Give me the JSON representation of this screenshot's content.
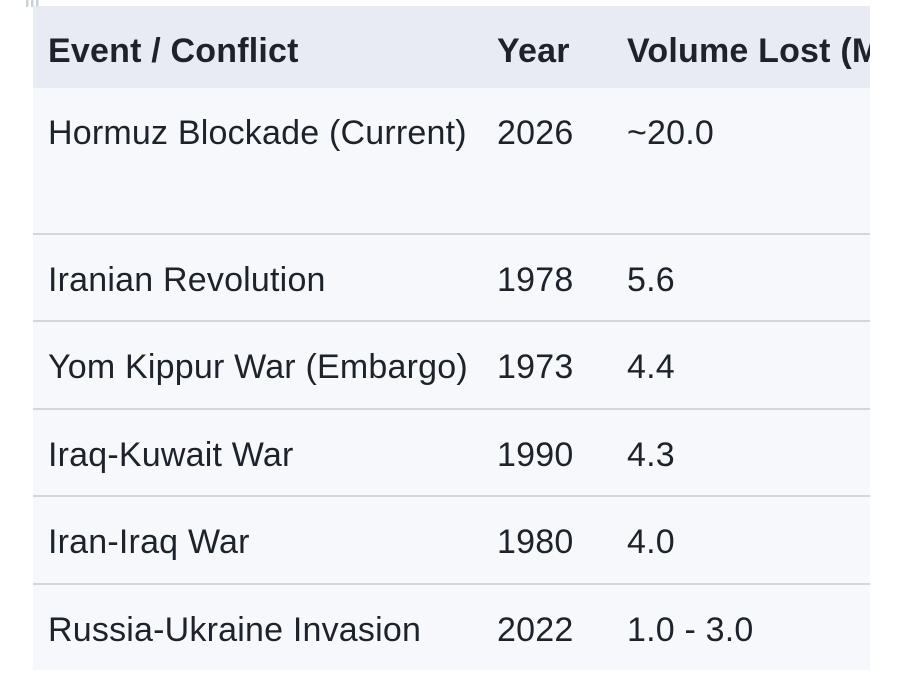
{
  "colors": {
    "page_bg": "#ffffff",
    "header_bg": "#e8ecf2",
    "row_bg": "#f6f8fb",
    "divider": "#d3d7dc",
    "text": "#1e232b"
  },
  "table": {
    "columns": [
      {
        "label": "Event / Conflict"
      },
      {
        "label": "Year"
      },
      {
        "label": "Volume Lost (MBP"
      }
    ],
    "rows": [
      {
        "event": "Hormuz Blockade (Current)",
        "year": "2026",
        "volume": "~20.0"
      },
      {
        "event": "Iranian Revolution",
        "year": "1978",
        "volume": "5.6"
      },
      {
        "event": "Yom Kippur War (Embargo)",
        "year": "1973",
        "volume": "4.4"
      },
      {
        "event": "Iraq-Kuwait War",
        "year": "1990",
        "volume": "4.3"
      },
      {
        "event": "Iran-Iraq War",
        "year": "1980",
        "volume": "4.0"
      },
      {
        "event": "Russia-Ukraine Invasion",
        "year": "2022",
        "volume": "1.0 - 3.0"
      }
    ]
  }
}
